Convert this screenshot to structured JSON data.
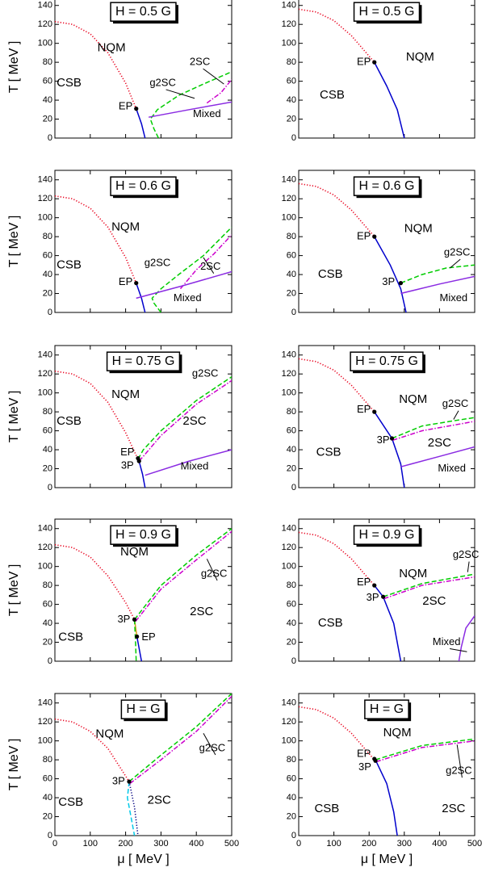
{
  "chart_data": [
    {
      "type": "line",
      "title": "H = 0.5 G",
      "y_label": "T  [ MeV ]",
      "xlim": [
        0,
        500
      ],
      "ylim": [
        0,
        150
      ],
      "xticks": [
        0,
        100,
        200,
        300,
        400,
        500
      ],
      "yticks": [
        0,
        20,
        40,
        60,
        80,
        100,
        120,
        140
      ],
      "series": [
        {
          "color": "#e8001c",
          "dash": "dotted",
          "x": [
            0,
            50,
            100,
            150,
            200,
            230
          ],
          "values": [
            123,
            120,
            110,
            90,
            58,
            31
          ]
        },
        {
          "color": "#0000cc",
          "dash": "solid",
          "x": [
            230,
            245,
            255
          ],
          "values": [
            31,
            15,
            0
          ]
        },
        {
          "color": "#00cc00",
          "dash": "dashed",
          "x": [
            293,
            280,
            270,
            290,
            350,
            420,
            500
          ],
          "values": [
            0,
            10,
            20,
            30,
            45,
            57,
            70
          ]
        },
        {
          "color": "#cc00cc",
          "dash": "dashdot",
          "x": [
            430,
            470,
            500
          ],
          "values": [
            37,
            48,
            62
          ]
        },
        {
          "color": "#8a2be2",
          "dash": "solid",
          "x": [
            265,
            380,
            500
          ],
          "values": [
            22,
            30,
            38
          ]
        }
      ],
      "markers": {
        "color": "#000000",
        "x": [
          230
        ],
        "values": [
          31
        ]
      },
      "annotations": [
        "NQM",
        "CSB",
        "2SC",
        "g2SC",
        "Mixed",
        "EP"
      ]
    },
    {
      "type": "line",
      "title": "H = 0.6 G",
      "y_label": "T  [ MeV ]",
      "xlim": [
        0,
        500
      ],
      "ylim": [
        0,
        150
      ],
      "xticks": [
        0,
        100,
        200,
        300,
        400,
        500
      ],
      "yticks": [
        0,
        20,
        40,
        60,
        80,
        100,
        120,
        140
      ],
      "series": [
        {
          "color": "#e8001c",
          "dash": "dotted",
          "x": [
            0,
            50,
            100,
            150,
            200,
            230
          ],
          "values": [
            123,
            120,
            110,
            90,
            58,
            31
          ]
        },
        {
          "color": "#0000cc",
          "dash": "solid",
          "x": [
            230,
            245,
            255
          ],
          "values": [
            31,
            15,
            0
          ]
        },
        {
          "color": "#00cc00",
          "dash": "dashed",
          "x": [
            300,
            280,
            275,
            300,
            350,
            420,
            500
          ],
          "values": [
            0,
            10,
            15,
            25,
            40,
            60,
            90
          ]
        },
        {
          "color": "#cc00cc",
          "dash": "dashdot",
          "x": [
            355,
            400,
            450,
            500
          ],
          "values": [
            25,
            45,
            62,
            82
          ]
        },
        {
          "color": "#8a2be2",
          "dash": "solid",
          "x": [
            230,
            360,
            500
          ],
          "values": [
            15,
            28,
            43
          ]
        }
      ],
      "markers": {
        "color": "#000000",
        "x": [
          230
        ],
        "values": [
          31
        ]
      },
      "annotations": [
        "NQM",
        "CSB",
        "g2SC",
        "2SC",
        "Mixed",
        "EP"
      ]
    },
    {
      "type": "line",
      "title": "H = 0.75 G",
      "y_label": "T  [ MeV ]",
      "xlim": [
        0,
        500
      ],
      "ylim": [
        0,
        150
      ],
      "xticks": [
        0,
        100,
        200,
        300,
        400,
        500
      ],
      "yticks": [
        0,
        20,
        40,
        60,
        80,
        100,
        120,
        140
      ],
      "series": [
        {
          "color": "#e8001c",
          "dash": "dotted",
          "x": [
            0,
            50,
            100,
            150,
            200,
            235
          ],
          "values": [
            123,
            120,
            110,
            90,
            58,
            30
          ]
        },
        {
          "color": "#0000cc",
          "dash": "solid",
          "x": [
            238,
            248,
            255
          ],
          "values": [
            28,
            14,
            0
          ]
        },
        {
          "color": "#00cc00",
          "dash": "dashed",
          "x": [
            235,
            250,
            300,
            400,
            500
          ],
          "values": [
            30,
            40,
            60,
            92,
            117
          ]
        },
        {
          "color": "#cc00cc",
          "dash": "dashdot",
          "x": [
            238,
            250,
            300,
            400,
            500
          ],
          "values": [
            28,
            33,
            55,
            88,
            113
          ]
        },
        {
          "color": "#8a2be2",
          "dash": "solid",
          "x": [
            255,
            380,
            500
          ],
          "values": [
            13,
            28,
            40
          ]
        }
      ],
      "markers": {
        "color": "#000000",
        "x": [
          235,
          238
        ],
        "values": [
          31,
          28
        ]
      },
      "annotations": [
        "NQM",
        "CSB",
        "g2SC",
        "2SC",
        "Mixed",
        "EP",
        "3P"
      ]
    },
    {
      "type": "line",
      "title": "H = 0.9 G",
      "y_label": "T  [ MeV ]",
      "xlim": [
        0,
        500
      ],
      "ylim": [
        0,
        150
      ],
      "xticks": [
        0,
        100,
        200,
        300,
        400,
        500
      ],
      "yticks": [
        0,
        20,
        40,
        60,
        80,
        100,
        120,
        140
      ],
      "series": [
        {
          "color": "#e8001c",
          "dash": "dotted",
          "x": [
            0,
            50,
            100,
            150,
            200,
            225
          ],
          "values": [
            123,
            120,
            110,
            90,
            62,
            44
          ]
        },
        {
          "color": "#d4a017",
          "dash": "solid",
          "x": [
            225,
            232
          ],
          "values": [
            44,
            26
          ]
        },
        {
          "color": "#0000cc",
          "dash": "solid",
          "x": [
            232,
            240,
            245
          ],
          "values": [
            26,
            10,
            0
          ]
        },
        {
          "color": "#00cc00",
          "dash": "dashed",
          "x": [
            225,
            228,
            230
          ],
          "values": [
            44,
            20,
            0
          ]
        },
        {
          "color": "#00cc00",
          "dash": "dashed",
          "x": [
            225,
            300,
            400,
            500
          ],
          "values": [
            44,
            80,
            112,
            140
          ]
        },
        {
          "color": "#cc00cc",
          "dash": "dashdot",
          "x": [
            228,
            300,
            400,
            500
          ],
          "values": [
            42,
            76,
            107,
            137
          ]
        }
      ],
      "markers": {
        "color": "#000000",
        "x": [
          225,
          232
        ],
        "values": [
          44,
          26
        ]
      },
      "annotations": [
        "NQM",
        "CSB",
        "g2SC",
        "2SC",
        "EP",
        "3P"
      ]
    },
    {
      "type": "line",
      "title": "H = G",
      "y_label": "T  [ MeV ]",
      "x_label": "μ  [ MeV ]",
      "xlim": [
        0,
        500
      ],
      "ylim": [
        0,
        150
      ],
      "xticks": [
        0,
        100,
        200,
        300,
        400,
        500
      ],
      "yticks": [
        0,
        20,
        40,
        60,
        80,
        100,
        120,
        140
      ],
      "series": [
        {
          "color": "#e8001c",
          "dash": "dotted",
          "x": [
            0,
            50,
            100,
            150,
            210
          ],
          "values": [
            123,
            120,
            110,
            92,
            57
          ]
        },
        {
          "color": "#00cc00",
          "dash": "dashed",
          "x": [
            210,
            300,
            400,
            500
          ],
          "values": [
            57,
            85,
            115,
            150
          ]
        },
        {
          "color": "#cc00cc",
          "dash": "dashdot",
          "x": [
            212,
            300,
            400,
            500
          ],
          "values": [
            55,
            80,
            110,
            147
          ]
        },
        {
          "color": "#00c8e8",
          "dash": "dashed",
          "x": [
            210,
            205,
            215,
            225
          ],
          "values": [
            57,
            40,
            20,
            0
          ]
        },
        {
          "color": "#000080",
          "dash": "dotted",
          "x": [
            210,
            225,
            235
          ],
          "values": [
            57,
            30,
            0
          ]
        }
      ],
      "markers": {
        "color": "#000000",
        "x": [
          210
        ],
        "values": [
          57
        ]
      },
      "annotations": [
        "NQM",
        "CSB",
        "g2SC",
        "2SC",
        "3P"
      ]
    },
    {
      "type": "line",
      "title": "H = 0.5 G",
      "xlim": [
        0,
        500
      ],
      "ylim": [
        0,
        150
      ],
      "xticks": [
        0,
        100,
        200,
        300,
        400,
        500
      ],
      "yticks": [
        0,
        20,
        40,
        60,
        80,
        100,
        120,
        140
      ],
      "series": [
        {
          "color": "#e8001c",
          "dash": "dotted",
          "x": [
            0,
            50,
            100,
            150,
            215
          ],
          "values": [
            136,
            133,
            124,
            108,
            80
          ]
        },
        {
          "color": "#0000cc",
          "dash": "solid",
          "x": [
            215,
            250,
            280,
            300
          ],
          "values": [
            80,
            55,
            30,
            0
          ]
        }
      ],
      "markers": {
        "color": "#000000",
        "x": [
          215
        ],
        "values": [
          80
        ]
      },
      "annotations": [
        "NQM",
        "CSB",
        "EP"
      ]
    },
    {
      "type": "line",
      "title": "H = 0.6 G",
      "xlim": [
        0,
        500
      ],
      "ylim": [
        0,
        150
      ],
      "xticks": [
        0,
        100,
        200,
        300,
        400,
        500
      ],
      "yticks": [
        0,
        20,
        40,
        60,
        80,
        100,
        120,
        140
      ],
      "series": [
        {
          "color": "#e8001c",
          "dash": "dotted",
          "x": [
            0,
            50,
            100,
            150,
            215
          ],
          "values": [
            136,
            133,
            124,
            108,
            80
          ]
        },
        {
          "color": "#0000cc",
          "dash": "solid",
          "x": [
            215,
            260,
            290,
            305
          ],
          "values": [
            80,
            50,
            25,
            0
          ]
        },
        {
          "color": "#00cc00",
          "dash": "dashed",
          "x": [
            290,
            350,
            420,
            500
          ],
          "values": [
            31,
            40,
            47,
            50
          ]
        },
        {
          "color": "#8a2be2",
          "dash": "solid",
          "x": [
            290,
            400,
            500
          ],
          "values": [
            20,
            30,
            38
          ]
        }
      ],
      "markers": {
        "color": "#000000",
        "x": [
          215,
          290
        ],
        "values": [
          80,
          31
        ]
      },
      "annotations": [
        "NQM",
        "CSB",
        "g2SC",
        "Mixed",
        "EP",
        "3P"
      ]
    },
    {
      "type": "line",
      "title": "H = 0.75 G",
      "xlim": [
        0,
        500
      ],
      "ylim": [
        0,
        150
      ],
      "xticks": [
        0,
        100,
        200,
        300,
        400,
        500
      ],
      "yticks": [
        0,
        20,
        40,
        60,
        80,
        100,
        120,
        140
      ],
      "series": [
        {
          "color": "#e8001c",
          "dash": "dotted",
          "x": [
            0,
            50,
            100,
            150,
            215
          ],
          "values": [
            136,
            133,
            124,
            108,
            80
          ]
        },
        {
          "color": "#0000cc",
          "dash": "solid",
          "x": [
            215,
            265,
            290,
            300
          ],
          "values": [
            80,
            52,
            25,
            0
          ]
        },
        {
          "color": "#00cc00",
          "dash": "dashed",
          "x": [
            265,
            350,
            430,
            500
          ],
          "values": [
            52,
            65,
            70,
            74
          ]
        },
        {
          "color": "#cc00cc",
          "dash": "dashdot",
          "x": [
            267,
            350,
            500
          ],
          "values": [
            50,
            60,
            70
          ]
        },
        {
          "color": "#8a2be2",
          "dash": "solid",
          "x": [
            290,
            400,
            500
          ],
          "values": [
            22,
            33,
            43
          ]
        }
      ],
      "markers": {
        "color": "#000000",
        "x": [
          215,
          265
        ],
        "values": [
          80,
          52
        ]
      },
      "annotations": [
        "NQM",
        "CSB",
        "g2SC",
        "2SC",
        "Mixed",
        "EP",
        "3P"
      ]
    },
    {
      "type": "line",
      "title": "H = 0.9 G",
      "xlim": [
        0,
        500
      ],
      "ylim": [
        0,
        150
      ],
      "xticks": [
        0,
        100,
        200,
        300,
        400,
        500
      ],
      "yticks": [
        0,
        20,
        40,
        60,
        80,
        100,
        120,
        140
      ],
      "series": [
        {
          "color": "#e8001c",
          "dash": "dotted",
          "x": [
            0,
            50,
            100,
            150,
            215
          ],
          "values": [
            136,
            133,
            124,
            108,
            80
          ]
        },
        {
          "color": "#0000cc",
          "dash": "solid",
          "x": [
            215,
            240,
            270,
            290
          ],
          "values": [
            80,
            68,
            40,
            0
          ]
        },
        {
          "color": "#00cc00",
          "dash": "dashed",
          "x": [
            240,
            350,
            500
          ],
          "values": [
            68,
            82,
            92
          ]
        },
        {
          "color": "#cc00cc",
          "dash": "dashdot",
          "x": [
            242,
            350,
            500
          ],
          "values": [
            66,
            80,
            89
          ]
        },
        {
          "color": "#8a2be2",
          "dash": "solid",
          "x": [
            455,
            462,
            475,
            500
          ],
          "values": [
            0,
            15,
            35,
            48
          ]
        }
      ],
      "markers": {
        "color": "#000000",
        "x": [
          215,
          240
        ],
        "values": [
          80,
          68
        ]
      },
      "annotations": [
        "NQM",
        "CSB",
        "g2SC",
        "2SC",
        "Mixed",
        "EP",
        "3P"
      ]
    },
    {
      "type": "line",
      "title": "H = G",
      "x_label": "μ  [ MeV ]",
      "xlim": [
        0,
        500
      ],
      "ylim": [
        0,
        150
      ],
      "xticks": [
        0,
        100,
        200,
        300,
        400,
        500
      ],
      "yticks": [
        0,
        20,
        40,
        60,
        80,
        100,
        120,
        140
      ],
      "series": [
        {
          "color": "#e8001c",
          "dash": "dotted",
          "x": [
            0,
            50,
            100,
            150,
            215
          ],
          "values": [
            136,
            133,
            124,
            108,
            80
          ]
        },
        {
          "color": "#0000cc",
          "dash": "solid",
          "x": [
            218,
            250,
            270,
            280
          ],
          "values": [
            80,
            55,
            25,
            0
          ]
        },
        {
          "color": "#00cc00",
          "dash": "dashed",
          "x": [
            218,
            350,
            500
          ],
          "values": [
            80,
            95,
            102
          ]
        },
        {
          "color": "#cc00cc",
          "dash": "dashdot",
          "x": [
            220,
            350,
            500
          ],
          "values": [
            78,
            93,
            100
          ]
        }
      ],
      "markers": {
        "color": "#000000",
        "x": [
          215,
          218
        ],
        "values": [
          81,
          79
        ]
      },
      "annotations": [
        "NQM",
        "CSB",
        "g2SC",
        "2SC",
        "EP",
        "3P"
      ]
    }
  ]
}
